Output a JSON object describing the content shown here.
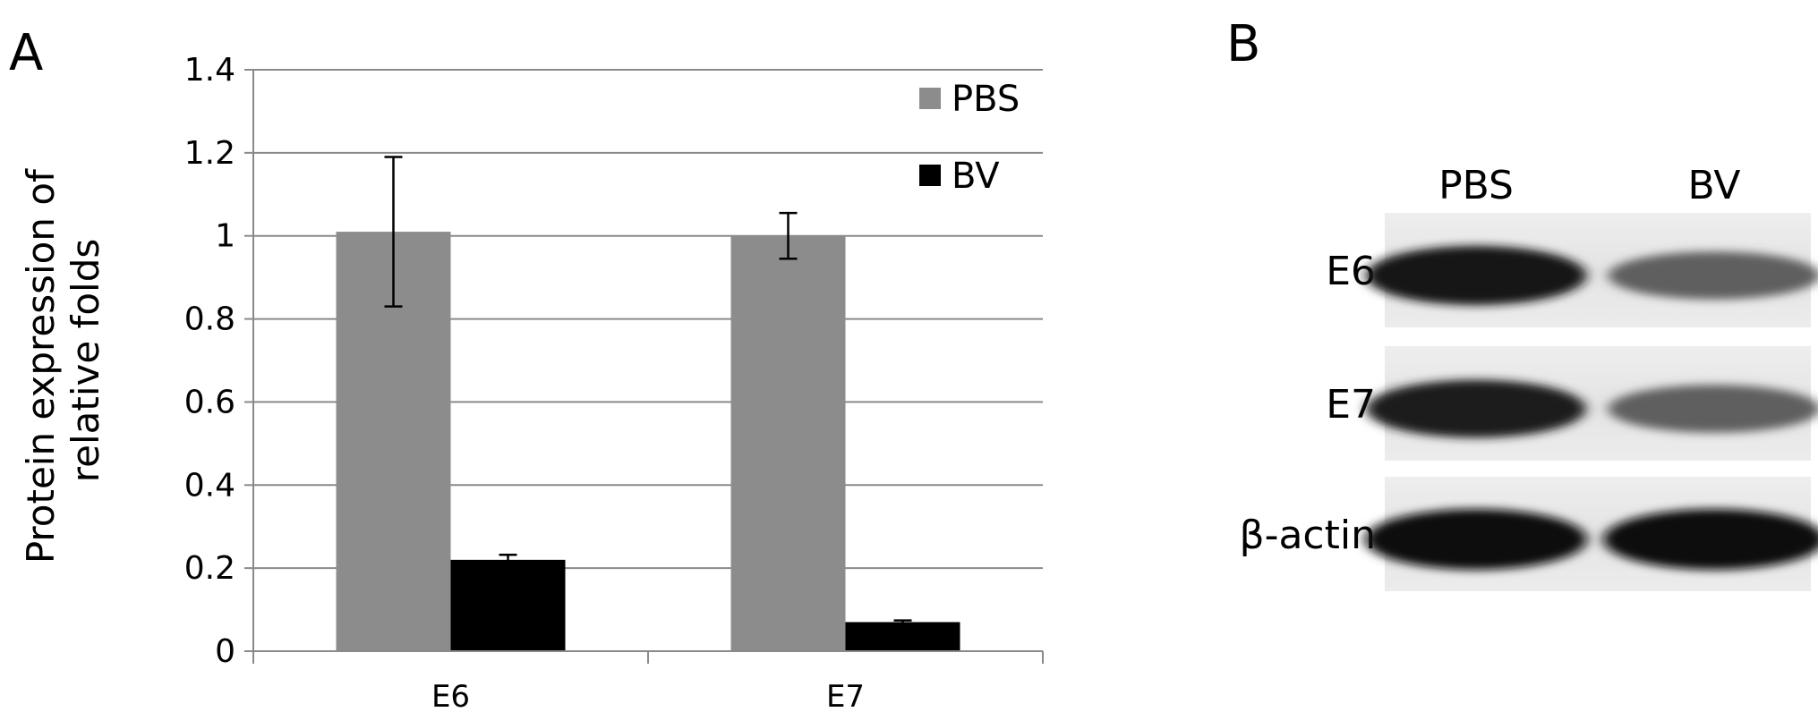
{
  "panels": {
    "a_letter": "A",
    "b_letter": "B"
  },
  "chart_data": {
    "type": "bar",
    "categories": [
      "E6",
      "E7"
    ],
    "series": [
      {
        "name": "PBS",
        "values": [
          1.01,
          1.0
        ],
        "errors": [
          0.18,
          0.055
        ],
        "color": "#8c8c8c"
      },
      {
        "name": "BV",
        "values": [
          0.22,
          0.07
        ],
        "errors": [
          0.012,
          0.004
        ],
        "color": "#000000"
      }
    ],
    "ylim": [
      0,
      1.4
    ],
    "yticks": [
      0,
      0.2,
      0.4,
      0.6,
      0.8,
      1,
      1.2,
      1.4
    ],
    "ytick_labels": [
      "0",
      "0.2",
      "0.4",
      "0.6",
      "0.8",
      "1",
      "1.2",
      "1.4"
    ],
    "ylabel_lines": [
      "Protein expression of",
      "relative  folds"
    ],
    "xlabel": "",
    "grid": true,
    "legend_position": "top-right",
    "error_bars": true
  },
  "blot": {
    "lanes": [
      "PBS",
      "BV"
    ],
    "rows": [
      {
        "label": "E6",
        "band_strength": [
          0.95,
          0.55
        ]
      },
      {
        "label": "E7",
        "band_strength": [
          0.9,
          0.55
        ]
      },
      {
        "label": "β-actin",
        "band_strength": [
          1.0,
          1.0
        ]
      }
    ]
  }
}
